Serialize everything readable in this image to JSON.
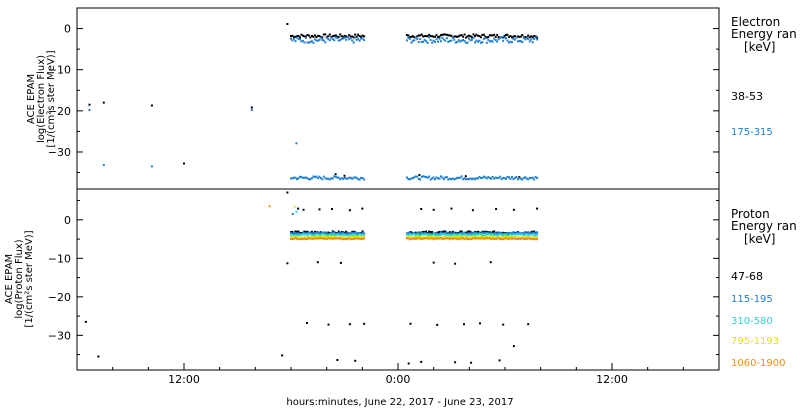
{
  "chart_data": [
    {
      "type": "scatter",
      "panel": "electron",
      "ylabel": [
        "ACE EPAM",
        "log(Electron Flux)",
        "[1/(cm²s ster MeV)]"
      ],
      "ylim": [
        -39,
        5
      ],
      "yticks": [
        0,
        -10,
        -20,
        -30
      ],
      "xlim": [
        6,
        42
      ],
      "legend_title": "Electron",
      "legend_subtitle": "Energy ran",
      "legend_unit": "[keV]",
      "legend_placement": "right",
      "series": [
        {
          "name": "38-53",
          "color": "#000000",
          "segments": [
            {
              "x0": 18.0,
              "x1": 22.1,
              "level": -1.8,
              "jitter": 0.4
            },
            {
              "x0": 24.5,
              "x1": 31.8,
              "level": -1.8,
              "jitter": 0.4
            }
          ],
          "points": [
            [
              6.7,
              -18.5
            ],
            [
              7.5,
              -18.0
            ],
            [
              10.2,
              -18.7
            ],
            [
              12.0,
              -32.8
            ],
            [
              15.8,
              -19.2
            ],
            [
              17.8,
              1.1
            ],
            [
              20.5,
              -35.4
            ],
            [
              21.0,
              -35.8
            ],
            [
              25.2,
              -35.6
            ],
            [
              27.8,
              -35.9
            ],
            [
              30.8,
              -36.1
            ]
          ]
        },
        {
          "name": "175-315",
          "color": "#1e7fd4",
          "segments": [
            {
              "x0": 18.0,
              "x1": 22.1,
              "level": -2.8,
              "jitter": 0.7
            },
            {
              "x0": 24.5,
              "x1": 31.8,
              "level": -2.8,
              "jitter": 0.7
            },
            {
              "x0": 18.0,
              "x1": 22.1,
              "level": -36.3,
              "jitter": 0.4
            },
            {
              "x0": 24.5,
              "x1": 31.8,
              "level": -36.3,
              "jitter": 0.4
            }
          ],
          "points": [
            [
              6.7,
              -19.8
            ],
            [
              7.5,
              -33.2
            ],
            [
              10.2,
              -33.5
            ],
            [
              15.8,
              -19.8
            ],
            [
              18.3,
              -27.9
            ]
          ]
        }
      ]
    },
    {
      "type": "scatter",
      "panel": "proton",
      "ylabel": [
        "ACE EPAM",
        "log(Proton Flux)",
        "[1/(cm²s ster MeV)]"
      ],
      "ylim": [
        -39,
        8
      ],
      "yticks": [
        0,
        -10,
        -20,
        -30
      ],
      "xlim": [
        6,
        42
      ],
      "xticks": [
        12,
        24,
        36
      ],
      "xticklabels": [
        "12:00",
        "0:00",
        "12:00"
      ],
      "xlabel": "hours:minutes, June 22, 2017 - June 23, 2017",
      "legend_title": "Proton",
      "legend_subtitle": "Energy ran",
      "legend_unit": "[keV]",
      "legend_placement": "right",
      "series": [
        {
          "name": "47-68",
          "color": "#000000",
          "segments": [
            {
              "x0": 18.0,
              "x1": 22.1,
              "level": -3.3,
              "jitter": 0.3
            },
            {
              "x0": 24.5,
              "x1": 31.8,
              "level": -3.3,
              "jitter": 0.3
            }
          ],
          "points": [
            [
              17.8,
              7.1
            ],
            [
              18.4,
              2.9
            ],
            [
              18.7,
              2.6
            ],
            [
              19.6,
              2.7
            ],
            [
              20.3,
              2.8
            ],
            [
              21.3,
              2.5
            ],
            [
              22.0,
              2.9
            ],
            [
              25.3,
              2.8
            ],
            [
              26.0,
              2.6
            ],
            [
              27.0,
              2.9
            ],
            [
              28.2,
              2.5
            ],
            [
              29.5,
              2.8
            ],
            [
              30.5,
              2.6
            ],
            [
              31.8,
              2.9
            ],
            [
              17.8,
              -11.3
            ],
            [
              19.5,
              -11.0
            ],
            [
              20.8,
              -11.2
            ],
            [
              26.0,
              -11.1
            ],
            [
              27.2,
              -11.4
            ],
            [
              29.2,
              -11.0
            ],
            [
              6.5,
              -26.5
            ],
            [
              18.9,
              -26.8
            ],
            [
              20.1,
              -27.2
            ],
            [
              21.3,
              -27.1
            ],
            [
              22.1,
              -27.0
            ],
            [
              24.7,
              -27.0
            ],
            [
              26.2,
              -27.3
            ],
            [
              27.7,
              -27.1
            ],
            [
              28.6,
              -26.9
            ],
            [
              29.9,
              -27.2
            ],
            [
              31.3,
              -27.1
            ],
            [
              30.5,
              -32.8
            ],
            [
              7.2,
              -35.5
            ],
            [
              17.5,
              -35.2
            ],
            [
              20.6,
              -36.4
            ],
            [
              21.6,
              -36.6
            ],
            [
              24.6,
              -37.3
            ],
            [
              25.3,
              -36.9
            ],
            [
              27.2,
              -37.0
            ],
            [
              28.1,
              -37.1
            ],
            [
              29.7,
              -36.5
            ]
          ]
        },
        {
          "name": "115-195",
          "color": "#1e7fd4",
          "segments": [
            {
              "x0": 18.0,
              "x1": 22.1,
              "level": -3.5,
              "jitter": 0.2
            },
            {
              "x0": 24.5,
              "x1": 31.8,
              "level": -3.5,
              "jitter": 0.2
            }
          ],
          "points": [
            [
              18.1,
              1.5
            ]
          ]
        },
        {
          "name": "310-580",
          "color": "#2ad4d4",
          "segments": [
            {
              "x0": 18.0,
              "x1": 22.1,
              "level": -3.9,
              "jitter": 0.2
            },
            {
              "x0": 24.5,
              "x1": 31.8,
              "level": -3.9,
              "jitter": 0.2
            }
          ],
          "points": [
            [
              18.3,
              2.1
            ]
          ]
        },
        {
          "name": "795-1193",
          "color": "#e1e11a",
          "segments": [
            {
              "x0": 18.0,
              "x1": 22.1,
              "level": -4.5,
              "jitter": 0.15
            },
            {
              "x0": 24.5,
              "x1": 31.8,
              "level": -4.5,
              "jitter": 0.15
            }
          ],
          "points": [
            [
              18.2,
              3.4
            ],
            [
              18.0,
              -4.4
            ]
          ]
        },
        {
          "name": "1060-1900",
          "color": "#f28c0f",
          "segments": [
            {
              "x0": 18.0,
              "x1": 22.1,
              "level": -4.9,
              "jitter": 0.15
            },
            {
              "x0": 24.5,
              "x1": 31.8,
              "level": -4.9,
              "jitter": 0.15
            }
          ],
          "points": [
            [
              16.8,
              3.5
            ]
          ]
        }
      ]
    }
  ]
}
